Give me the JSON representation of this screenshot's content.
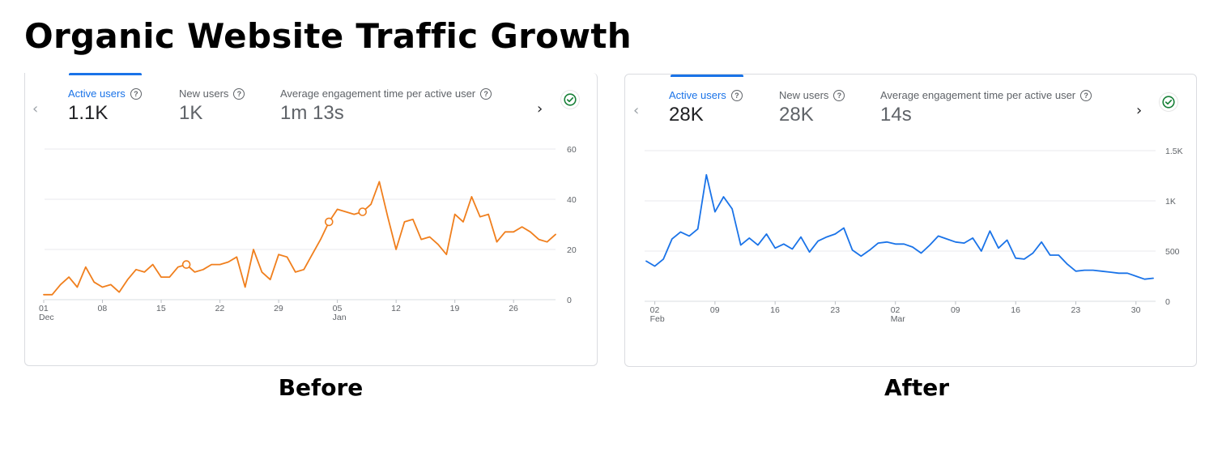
{
  "title": "Organic Website Traffic Growth",
  "panels": [
    {
      "caption": "Before",
      "metrics": [
        {
          "label": "Active users",
          "value": "1.1K"
        },
        {
          "label": "New users",
          "value": "1K"
        },
        {
          "label": "Average engagement time per active user",
          "value": "1m 13s"
        }
      ]
    },
    {
      "caption": "After",
      "metrics": [
        {
          "label": "Active users",
          "value": "28K"
        },
        {
          "label": "New users",
          "value": "28K"
        },
        {
          "label": "Average engagement time per active user",
          "value": "14s"
        }
      ]
    }
  ],
  "icons": {
    "help": "help-circle-icon",
    "prev": "chevron-left-icon",
    "next": "chevron-right-icon",
    "status": "check-circle-icon"
  },
  "colors": {
    "before_line": "#f07f1d",
    "after_line": "#1a73e8",
    "accent": "#1a73e8",
    "check": "#188038"
  },
  "chart_data": [
    {
      "type": "line",
      "title": "",
      "xlabel": "",
      "ylabel": "",
      "ylim": [
        0,
        60
      ],
      "y_ticks": [
        "0",
        "20",
        "40",
        "60"
      ],
      "y_tick_values": [
        0,
        20,
        40,
        60
      ],
      "x_ticks": [
        {
          "label": "01",
          "sub": "Dec",
          "day": 0
        },
        {
          "label": "08",
          "sub": "",
          "day": 7
        },
        {
          "label": "15",
          "sub": "",
          "day": 14
        },
        {
          "label": "22",
          "sub": "",
          "day": 21
        },
        {
          "label": "29",
          "sub": "",
          "day": 28
        },
        {
          "label": "05",
          "sub": "Jan",
          "day": 35
        },
        {
          "label": "12",
          "sub": "",
          "day": 42
        },
        {
          "label": "19",
          "sub": "",
          "day": 49
        },
        {
          "label": "26",
          "sub": "",
          "day": 56
        }
      ],
      "grid": true,
      "legend": "none",
      "series": [
        {
          "values": [
            2,
            2,
            6,
            9,
            5,
            13,
            7,
            5,
            6,
            3,
            8,
            12,
            11,
            14,
            9,
            9,
            13,
            14,
            11,
            12,
            14,
            14,
            15,
            17,
            5,
            20,
            11,
            8,
            18,
            17,
            11,
            12,
            18,
            24,
            31,
            36,
            35,
            34,
            35,
            38,
            47,
            33,
            20,
            31,
            32,
            24,
            25,
            22,
            18,
            34,
            31,
            41,
            33,
            34,
            23,
            27,
            27,
            29,
            27,
            24,
            23,
            26
          ],
          "markers": [
            17,
            34,
            38
          ]
        }
      ]
    },
    {
      "type": "line",
      "title": "",
      "xlabel": "",
      "ylabel": "",
      "ylim": [
        0,
        1500
      ],
      "y_ticks": [
        "0",
        "500",
        "1K",
        "1.5K"
      ],
      "y_tick_values": [
        0,
        500,
        1000,
        1500
      ],
      "x_ticks": [
        {
          "label": "02",
          "sub": "Feb",
          "day": 1
        },
        {
          "label": "09",
          "sub": "",
          "day": 8
        },
        {
          "label": "16",
          "sub": "",
          "day": 15
        },
        {
          "label": "23",
          "sub": "",
          "day": 22
        },
        {
          "label": "02",
          "sub": "Mar",
          "day": 29
        },
        {
          "label": "09",
          "sub": "",
          "day": 36
        },
        {
          "label": "16",
          "sub": "",
          "day": 43
        },
        {
          "label": "23",
          "sub": "",
          "day": 50
        },
        {
          "label": "30",
          "sub": "",
          "day": 57
        }
      ],
      "grid": true,
      "legend": "none",
      "series": [
        {
          "values": [
            400,
            350,
            420,
            620,
            690,
            650,
            720,
            1260,
            890,
            1040,
            920,
            560,
            630,
            560,
            670,
            530,
            570,
            520,
            640,
            490,
            600,
            640,
            670,
            730,
            510,
            450,
            510,
            580,
            590,
            570,
            570,
            540,
            480,
            560,
            650,
            620,
            590,
            580,
            630,
            500,
            700,
            530,
            610,
            430,
            420,
            480,
            590,
            460,
            460,
            370,
            300,
            310,
            310,
            300,
            290,
            280,
            280,
            250,
            220,
            230
          ],
          "markers": []
        }
      ]
    }
  ]
}
